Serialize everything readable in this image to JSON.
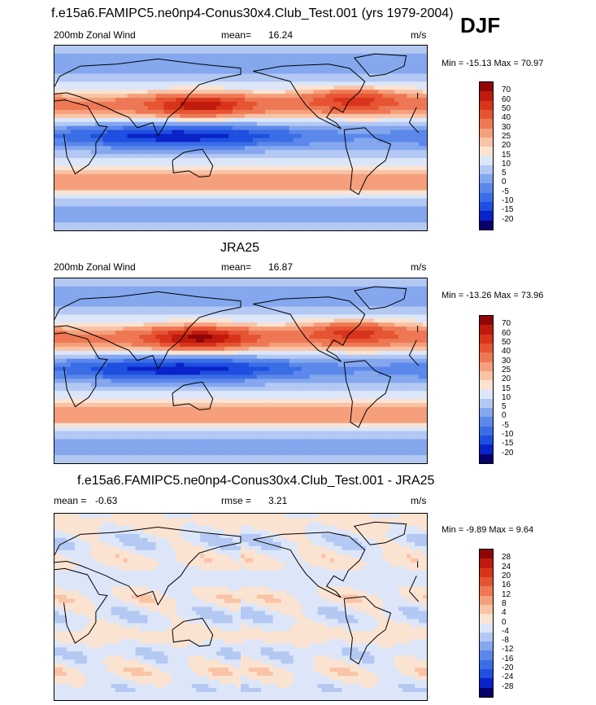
{
  "header": {
    "title": "f.e15a6.FAMIPC5.ne0np4-Conus30x4.Club_Test.001 (yrs 1979-2004)",
    "season": "DJF"
  },
  "colors": {
    "coast": "#000000",
    "wind_palette": [
      "#08006a",
      "#0a23c9",
      "#1e4fe0",
      "#3b6de6",
      "#5b88ea",
      "#84a7ee",
      "#b3c8f3",
      "#dce6f8",
      "#fbe3d2",
      "#f9c3a5",
      "#f59f7c",
      "#ee7855",
      "#e65432",
      "#d8341c",
      "#bf1a0d",
      "#8e0606"
    ],
    "diff_palette": [
      "#08006a",
      "#0a23c9",
      "#1e4fe0",
      "#3b6de6",
      "#5b88ea",
      "#84a7ee",
      "#b3c8f3",
      "#dce6f8",
      "#fbe3d2",
      "#f9c3a5",
      "#f59f7c",
      "#ee7855",
      "#e65432",
      "#d8341c",
      "#bf1a0d",
      "#8e0606"
    ]
  },
  "chart_data": [
    {
      "type": "heatmap",
      "title": "",
      "left_label": "200mb Zonal Wind",
      "mean_label": "mean=",
      "mean_value": "16.24",
      "units": "m/s",
      "min_max": "Min = -15.13 Max = 70.97",
      "min": -15.13,
      "max": 70.97,
      "mean": 16.24,
      "colorbar_ticks": [
        "70",
        "60",
        "50",
        "40",
        "30",
        "25",
        "20",
        "15",
        "10",
        "5",
        "0",
        "-5",
        "-10",
        "-15",
        "-20"
      ],
      "map": "global lat-lon, 180 centered",
      "jets": [
        {
          "name": "asian_jet",
          "lon_center": 140,
          "lat_center": 32,
          "peak": 65
        },
        {
          "name": "atlantic_jet",
          "lon_center": -70,
          "lat_center": 38,
          "peak": 55
        }
      ]
    },
    {
      "type": "heatmap",
      "title": "JRA25",
      "left_label": "200mb Zonal Wind",
      "mean_label": "mean=",
      "mean_value": "16.87",
      "units": "m/s",
      "min_max": "Min = -13.26 Max = 73.96",
      "min": -13.26,
      "max": 73.96,
      "mean": 16.87,
      "colorbar_ticks": [
        "70",
        "60",
        "50",
        "40",
        "30",
        "25",
        "20",
        "15",
        "10",
        "5",
        "0",
        "-5",
        "-10",
        "-15",
        "-20"
      ],
      "map": "global lat-lon, 180 centered",
      "jets": [
        {
          "name": "asian_jet",
          "lon_center": 140,
          "lat_center": 32,
          "peak": 72
        },
        {
          "name": "atlantic_jet",
          "lon_center": -70,
          "lat_center": 38,
          "peak": 55
        }
      ]
    },
    {
      "type": "heatmap",
      "title": "f.e15a6.FAMIPC5.ne0np4-Conus30x4.Club_Test.001 - JRA25",
      "left_label": "mean =",
      "mean_label": "",
      "mean_value": "-0.63",
      "rmse_label": "rmse =",
      "rmse_value": "3.21",
      "units": "m/s",
      "min_max": "Min =  -9.89 Max =  9.64",
      "min": -9.89,
      "max": 9.64,
      "mean": -0.63,
      "rmse": 3.21,
      "colorbar_ticks": [
        "28",
        "24",
        "20",
        "16",
        "12",
        "8",
        "4",
        "0",
        "-4",
        "-8",
        "-12",
        "-16",
        "-20",
        "-24",
        "-28"
      ],
      "map": "global lat-lon, 180 centered"
    }
  ]
}
